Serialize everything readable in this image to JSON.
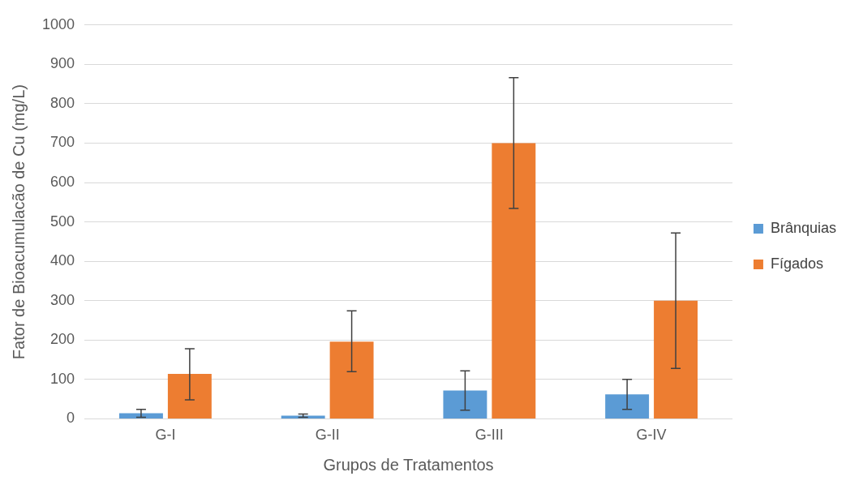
{
  "chart_data": {
    "type": "bar",
    "xlabel": "Grupos de Tratamentos",
    "ylabel": "Fator de Bioacumulacão de Cu (mg/L)",
    "categories": [
      "G-I",
      "G-II",
      "G-III",
      "G-IV"
    ],
    "series": [
      {
        "name": "Brânquias",
        "color": "#5b9bd5",
        "values": [
          14,
          8,
          72,
          62
        ],
        "errors": [
          [
            4,
            24
          ],
          [
            4,
            12
          ],
          [
            22,
            122
          ],
          [
            24,
            100
          ]
        ]
      },
      {
        "name": "Fígados",
        "color": "#ed7d31",
        "values": [
          114,
          196,
          700,
          300
        ],
        "errors": [
          [
            48,
            178
          ],
          [
            120,
            274
          ],
          [
            534,
            866
          ],
          [
            128,
            472
          ]
        ]
      }
    ],
    "ylim": [
      0,
      1000
    ],
    "yticks": [
      0,
      100,
      200,
      300,
      400,
      500,
      600,
      700,
      800,
      900,
      1000
    ],
    "grid": "y",
    "legend": "right"
  }
}
